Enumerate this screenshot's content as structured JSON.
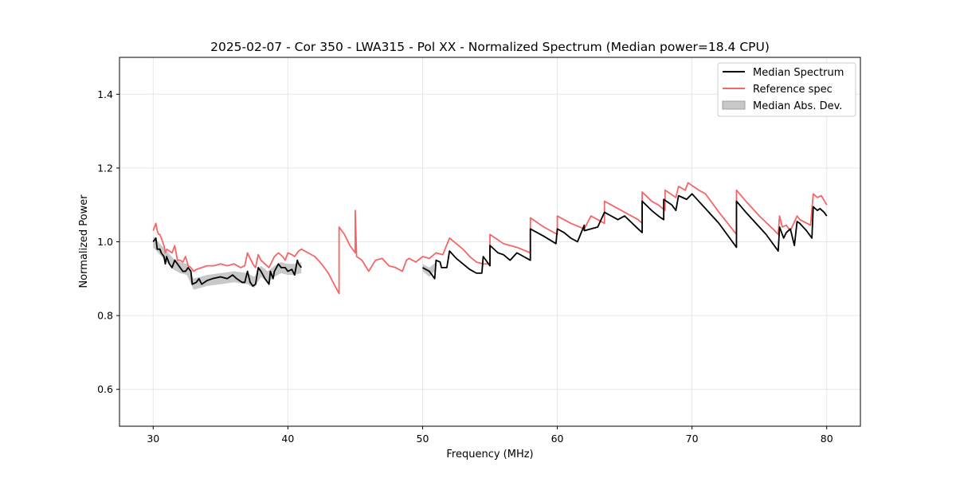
{
  "chart_data": {
    "type": "line",
    "title": "2025-02-07 - Cor 350 - LWA315 - Pol XX - Normalized Spectrum (Median power=18.4 CPU)",
    "xlabel": "Frequency (MHz)",
    "ylabel": "Normalized Power",
    "xlim": [
      27.5,
      82.5
    ],
    "ylim": [
      0.5,
      1.5
    ],
    "xticks": [
      30,
      40,
      50,
      60,
      70,
      80
    ],
    "yticks": [
      0.6,
      0.8,
      1.0,
      1.2,
      1.4
    ],
    "xtick_labels": [
      "30",
      "40",
      "50",
      "60",
      "70",
      "80"
    ],
    "ytick_labels": [
      "0.6",
      "0.8",
      "1.0",
      "1.2",
      "1.4"
    ],
    "grid": true,
    "legend_position": "top-right",
    "legend": [
      "Median Spectrum",
      "Reference spec",
      "Median Abs. Dev."
    ],
    "colors": {
      "median": "#000000",
      "reference": "#f56666",
      "mad": "#c8c8c8",
      "grid": "#e6e6e6"
    },
    "series": [
      {
        "name": "Median Spectrum",
        "segments": [
          {
            "x": [
              30.0,
              30.2,
              30.3,
              30.5,
              30.6,
              30.8,
              30.9,
              31.0,
              31.2,
              31.4,
              31.6,
              31.8,
              32.0,
              32.2,
              32.4,
              32.6,
              32.8,
              32.9,
              33.2,
              33.4,
              33.6,
              34.0,
              34.4,
              35.0,
              35.5,
              35.9,
              36.2,
              36.6,
              36.8,
              37.0,
              37.2,
              37.4,
              37.6,
              37.8,
              38.0,
              38.3,
              38.6,
              38.7,
              38.9,
              39.0,
              39.3,
              39.5,
              39.8,
              40.0,
              40.3,
              40.5,
              40.7,
              40.8,
              41.0
            ],
            "y": [
              1.0,
              1.01,
              0.98,
              0.98,
              0.97,
              0.96,
              0.94,
              0.96,
              0.94,
              0.93,
              0.95,
              0.94,
              0.93,
              0.92,
              0.92,
              0.93,
              0.92,
              0.885,
              0.89,
              0.9,
              0.885,
              0.895,
              0.9,
              0.905,
              0.9,
              0.91,
              0.9,
              0.89,
              0.89,
              0.92,
              0.89,
              0.88,
              0.885,
              0.93,
              0.92,
              0.9,
              0.885,
              0.92,
              0.9,
              0.92,
              0.94,
              0.93,
              0.93,
              0.92,
              0.925,
              0.91,
              0.95,
              0.94,
              0.93
            ]
          },
          {
            "x": [
              50.0,
              50.5,
              50.9,
              51.0,
              51.3,
              51.4,
              51.8,
              52.0,
              52.5,
              53.0,
              53.5,
              54.0,
              54.4,
              54.5,
              55.0,
              55.0,
              55.6,
              56.0,
              56.5,
              57.0,
              57.5,
              58.0,
              58.0,
              59.0,
              59.9,
              60.0,
              60.5,
              61.0,
              61.5,
              62.0,
              62.0,
              63.0,
              63.5,
              63.5,
              64.5,
              65.0,
              66.0,
              66.3,
              66.3,
              67.0,
              67.5,
              67.9,
              67.9,
              68.5,
              68.8,
              69.0,
              69.6,
              70.0,
              71.0,
              72.0,
              73.3,
              73.3,
              74.0,
              75.0,
              75.5,
              76.4,
              76.5,
              76.8,
              77.0,
              77.3,
              77.6,
              77.8,
              78.0,
              78.5,
              78.9,
              79.0,
              79.3,
              79.5,
              79.8,
              80.0
            ],
            "y": [
              0.93,
              0.92,
              0.9,
              0.95,
              0.945,
              0.93,
              0.93,
              0.975,
              0.955,
              0.94,
              0.925,
              0.915,
              0.915,
              0.96,
              0.935,
              0.99,
              0.97,
              0.965,
              0.95,
              0.97,
              0.96,
              0.95,
              1.035,
              1.015,
              0.995,
              1.035,
              1.025,
              1.01,
              1.0,
              1.045,
              1.03,
              1.04,
              1.08,
              1.08,
              1.06,
              1.07,
              1.035,
              1.025,
              1.11,
              1.085,
              1.07,
              1.06,
              1.115,
              1.1,
              1.085,
              1.125,
              1.115,
              1.13,
              1.09,
              1.05,
              0.985,
              1.11,
              1.08,
              1.04,
              1.02,
              0.975,
              1.04,
              1.01,
              1.025,
              1.035,
              0.99,
              1.055,
              1.05,
              1.03,
              1.01,
              1.095,
              1.085,
              1.09,
              1.08,
              1.07
            ]
          }
        ]
      },
      {
        "name": "Reference spec",
        "x": [
          30.0,
          30.1,
          30.2,
          30.3,
          30.4,
          30.5,
          30.6,
          30.8,
          30.9,
          31.0,
          31.2,
          31.4,
          31.6,
          31.8,
          32.0,
          32.2,
          32.4,
          32.6,
          32.8,
          33.0,
          33.2,
          33.6,
          34.0,
          34.5,
          35.0,
          35.5,
          36.0,
          36.5,
          36.8,
          37.0,
          37.4,
          37.6,
          37.8,
          38.0,
          38.3,
          38.6,
          39.0,
          39.3,
          39.6,
          39.8,
          40.0,
          40.3,
          40.5,
          40.8,
          41.0,
          41.5,
          42.0,
          42.5,
          43.0,
          43.5,
          43.8,
          43.8,
          44.2,
          44.6,
          45.0,
          45.0,
          45.1,
          45.5,
          46.0,
          46.5,
          47.0,
          47.5,
          48.0,
          48.5,
          48.8,
          49.0,
          49.5,
          50.0,
          50.5,
          51.0,
          51.5,
          52.0,
          52.5,
          53.0,
          53.5,
          54.0,
          54.5,
          55.0,
          55.0,
          56.0,
          57.0,
          58.0,
          58.0,
          59.0,
          60.0,
          60.0,
          61.0,
          62.0,
          62.5,
          63.5,
          63.5,
          64.0,
          65.0,
          66.0,
          66.3,
          66.3,
          67.0,
          67.5,
          68.0,
          68.0,
          68.8,
          69.0,
          69.5,
          69.7,
          70.5,
          71.0,
          72.0,
          73.3,
          73.3,
          74.0,
          75.0,
          76.0,
          76.4,
          76.5,
          76.7,
          77.0,
          77.3,
          77.8,
          78.0,
          78.8,
          79.0,
          79.3,
          79.6,
          80.0
        ],
        "y": [
          1.03,
          1.04,
          1.05,
          1.03,
          1.02,
          1.02,
          1.01,
          0.99,
          0.97,
          0.98,
          0.975,
          0.97,
          0.99,
          0.95,
          0.95,
          0.945,
          0.96,
          0.935,
          0.93,
          0.92,
          0.925,
          0.93,
          0.935,
          0.935,
          0.94,
          0.935,
          0.94,
          0.93,
          0.935,
          0.97,
          0.94,
          0.93,
          0.965,
          0.95,
          0.94,
          0.93,
          0.96,
          0.97,
          0.96,
          0.95,
          0.97,
          0.965,
          0.96,
          0.975,
          0.98,
          0.97,
          0.96,
          0.94,
          0.915,
          0.88,
          0.86,
          1.04,
          1.02,
          0.99,
          0.97,
          1.085,
          0.96,
          0.95,
          0.92,
          0.95,
          0.955,
          0.935,
          0.93,
          0.92,
          0.95,
          0.955,
          0.945,
          0.96,
          0.955,
          0.97,
          0.965,
          1.01,
          0.995,
          0.98,
          0.96,
          0.945,
          0.94,
          0.94,
          1.02,
          0.995,
          0.985,
          0.97,
          1.065,
          1.04,
          1.02,
          1.07,
          1.05,
          1.035,
          1.07,
          1.05,
          1.11,
          1.1,
          1.08,
          1.06,
          1.05,
          1.135,
          1.11,
          1.1,
          1.085,
          1.14,
          1.12,
          1.15,
          1.14,
          1.16,
          1.14,
          1.13,
          1.08,
          1.02,
          1.14,
          1.11,
          1.07,
          1.035,
          1.02,
          1.07,
          1.04,
          1.045,
          1.03,
          1.07,
          1.06,
          1.045,
          1.13,
          1.12,
          1.125,
          1.1
        ]
      }
    ],
    "mad_band": [
      {
        "x": [
          30.0,
          30.5,
          31.0,
          31.5,
          32.0,
          32.5,
          33.0,
          33.5,
          34.0,
          35.0,
          36.0,
          37.0,
          37.5,
          38.0,
          38.5,
          39.0,
          39.5,
          40.0,
          40.5,
          41.0
        ],
        "upper": [
          1.015,
          0.995,
          0.975,
          0.955,
          0.945,
          0.94,
          0.9,
          0.905,
          0.91,
          0.915,
          0.92,
          0.915,
          0.905,
          0.935,
          0.92,
          0.935,
          0.945,
          0.94,
          0.94,
          0.945
        ],
        "lower": [
          0.985,
          0.965,
          0.945,
          0.925,
          0.915,
          0.91,
          0.87,
          0.875,
          0.88,
          0.885,
          0.89,
          0.885,
          0.875,
          0.905,
          0.89,
          0.905,
          0.915,
          0.91,
          0.91,
          0.915
        ]
      },
      {
        "x": [
          50.0,
          50.5,
          51.0
        ],
        "upper": [
          0.94,
          0.93,
          0.945
        ],
        "lower": [
          0.92,
          0.905,
          0.925
        ]
      }
    ]
  }
}
